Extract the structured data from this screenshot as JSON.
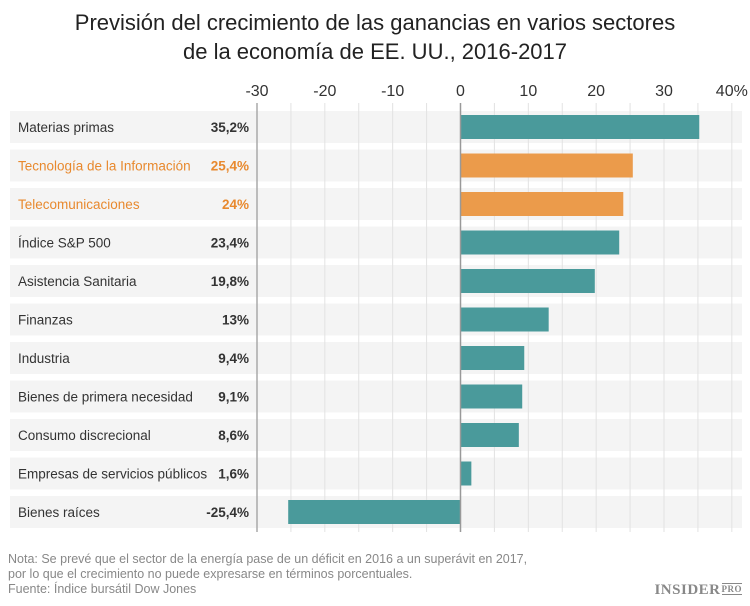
{
  "chart_data": {
    "type": "bar",
    "orientation": "horizontal",
    "title_lines": [
      "Previsión del crecimiento de las ganancias en varios sectores",
      "de la economía de EE. UU., 2016-2017"
    ],
    "categories": [
      "Materias primas",
      "Tecnología de la Información",
      "Telecomunicaciones",
      "Índice S&P 500",
      "Asistencia Sanitaria",
      "Finanzas",
      "Industria",
      "Bienes de primera necesidad",
      "Consumo discrecional",
      "Empresas de servicios públicos",
      "Bienes raíces"
    ],
    "values": [
      35.2,
      25.4,
      24,
      23.4,
      19.8,
      13,
      9.4,
      9.1,
      8.6,
      1.6,
      -25.4
    ],
    "value_labels": [
      "35,2%",
      "25,4%",
      "24%",
      "23,4%",
      "19,8%",
      "13%",
      "9,4%",
      "9,1%",
      "8,6%",
      "1,6%",
      "-25,4%"
    ],
    "highlighted": [
      false,
      true,
      true,
      false,
      false,
      false,
      false,
      false,
      false,
      false,
      false
    ],
    "xlim": [
      -30,
      41.5
    ],
    "xticks": [
      -30,
      -20,
      -10,
      0,
      10,
      20,
      30,
      40
    ],
    "xtick_labels": [
      "-30",
      "-20",
      "-10",
      "0",
      "10",
      "20",
      "30",
      "40%"
    ],
    "grid": true,
    "colors": {
      "default": "#4a9a9b",
      "highlight": "#eb9b4b",
      "highlight_text": "#e8892e",
      "row_bg": "#f4f4f4"
    }
  },
  "notes": [
    "Nota: Se prevé que el sector de la energía pase de un déficit en 2016 a un superávit en 2017,",
    "por lo que el crecimiento no puede expresarse en términos porcentuales.",
    "Fuente: Índice bursátil Dow Jones"
  ],
  "logo": {
    "main": "INSIDER",
    "sub": "PRO"
  }
}
